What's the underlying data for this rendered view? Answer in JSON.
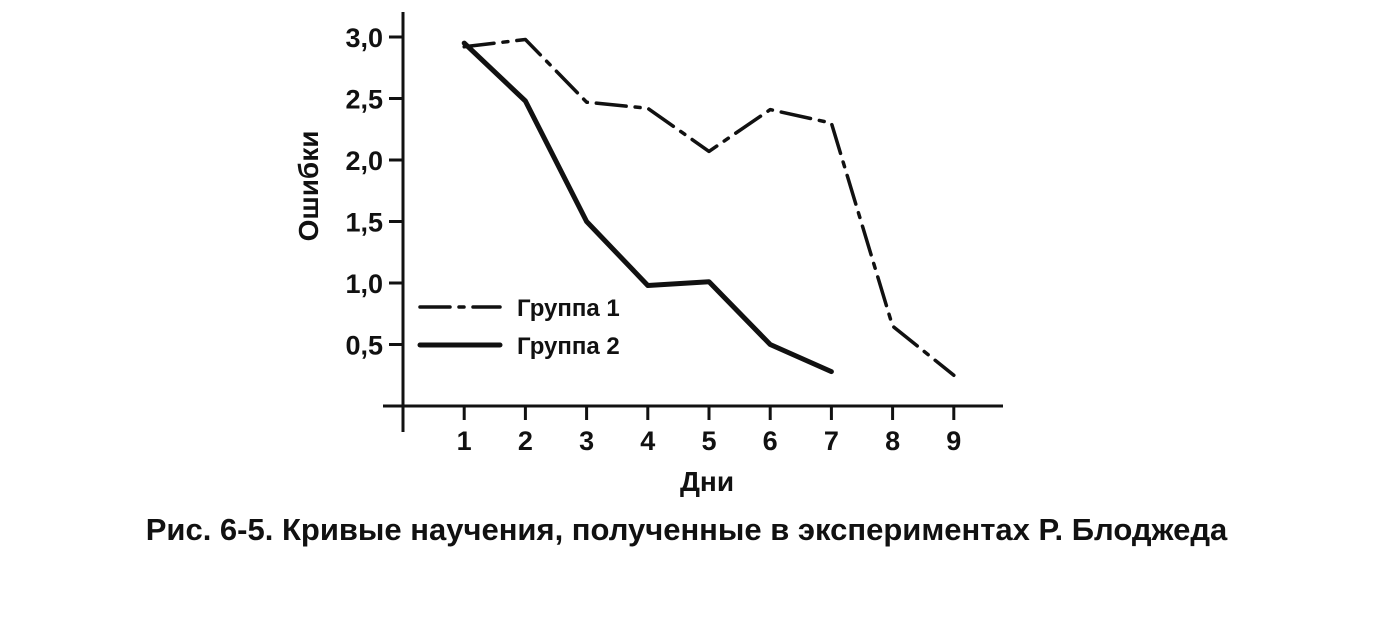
{
  "caption": "Рис. 6-5. Кривые научения, полученные в экспериментах Р. Блоджеда",
  "chart_data": {
    "type": "line",
    "title": "",
    "xlabel": "Дни",
    "ylabel": "Ошибки",
    "xlim": [
      0,
      9.75
    ],
    "ylim": [
      0,
      3.2
    ],
    "x_ticks": [
      1,
      2,
      3,
      4,
      5,
      6,
      7,
      8,
      9
    ],
    "x_tick_labels": [
      "1",
      "2",
      "3",
      "4",
      "5",
      "6",
      "7",
      "8",
      "9"
    ],
    "y_ticks": [
      0.5,
      1.0,
      1.5,
      2.0,
      2.5,
      3.0
    ],
    "y_tick_labels": [
      "0,5",
      "1,0",
      "1,5",
      "2,0",
      "2,5",
      "3,0"
    ],
    "grid": false,
    "legend": "center-left",
    "series": [
      {
        "name": "Группа 1",
        "style": "dash-dot",
        "color": "#111111",
        "x": [
          1,
          2,
          3,
          4,
          5,
          6,
          7,
          8,
          9
        ],
        "y": [
          2.92,
          2.98,
          2.47,
          2.42,
          2.07,
          2.41,
          2.3,
          0.65,
          0.25
        ]
      },
      {
        "name": "Группа 2",
        "style": "solid",
        "color": "#111111",
        "x": [
          1,
          2,
          3,
          4,
          5,
          6,
          7
        ],
        "y": [
          2.95,
          2.48,
          1.5,
          0.98,
          1.01,
          0.5,
          0.28
        ]
      }
    ]
  }
}
